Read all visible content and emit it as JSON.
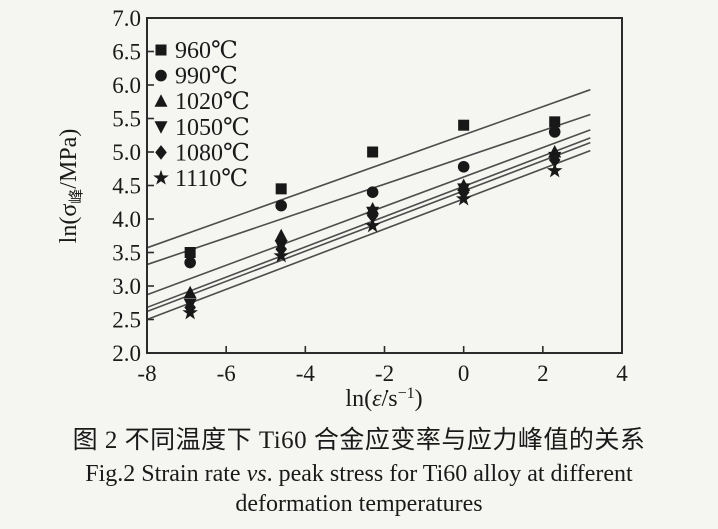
{
  "figure": {
    "caption_zh": "图 2  不同温度下 Ti60 合金应变率与应力峰值的关系",
    "caption_en_pre": "Fig.2  Strain rate ",
    "caption_en_italic": "vs",
    "caption_en_post": ". peak stress for Ti60 alloy at different",
    "caption_en_line2": "deformation temperatures"
  },
  "chart_data": {
    "type": "scatter",
    "title": "",
    "xlabel_parts": {
      "pre": "ln(",
      "var": "ε̇",
      "mid": "/s",
      "sup": "−1",
      "post": ")"
    },
    "ylabel_parts": {
      "pre": "ln(σ",
      "sub": "峰",
      "post": "/MPa)"
    },
    "xlim": [
      -8,
      4
    ],
    "ylim": [
      2.0,
      7.0
    ],
    "xticks": [
      -8,
      -6,
      -4,
      -2,
      0,
      2,
      4
    ],
    "xtick_labels": [
      "-8",
      "-6",
      "-4",
      "-2",
      "0",
      "2",
      "4"
    ],
    "yticks": [
      2.0,
      2.5,
      3.0,
      3.5,
      4.0,
      4.5,
      5.0,
      5.5,
      6.0,
      6.5,
      7.0
    ],
    "ytick_labels": [
      "2.0",
      "2.5",
      "3.0",
      "3.5",
      "4.0",
      "4.5",
      "5.0",
      "5.5",
      "6.0",
      "6.5",
      "7.0"
    ],
    "grid": false,
    "legend_position": "top-left",
    "x": [
      -6.91,
      -4.61,
      -2.3,
      0.0,
      2.3
    ],
    "series": [
      {
        "name": "960℃",
        "marker": "square",
        "values": [
          3.5,
          4.45,
          5.0,
          5.4,
          5.45
        ],
        "fit_line": {
          "x1": -8,
          "y1": 3.57,
          "x2": 3.2,
          "y2": 5.93
        }
      },
      {
        "name": "990℃",
        "marker": "circle",
        "values": [
          3.35,
          4.2,
          4.4,
          4.78,
          5.3
        ],
        "fit_line": {
          "x1": -8,
          "y1": 3.32,
          "x2": 3.2,
          "y2": 5.56
        }
      },
      {
        "name": "1020℃",
        "marker": "triangle-up",
        "values": [
          2.9,
          3.75,
          4.15,
          4.5,
          5.0
        ],
        "fit_line": {
          "x1": -8,
          "y1": 2.87,
          "x2": 3.2,
          "y2": 5.33
        }
      },
      {
        "name": "1050℃",
        "marker": "triangle-down",
        "values": [
          2.73,
          3.6,
          4.1,
          4.45,
          4.92
        ],
        "fit_line": {
          "x1": -8,
          "y1": 2.68,
          "x2": 3.2,
          "y2": 5.21
        }
      },
      {
        "name": "1080℃",
        "marker": "diamond",
        "values": [
          2.68,
          3.55,
          4.05,
          4.4,
          4.88
        ],
        "fit_line": {
          "x1": -8,
          "y1": 2.62,
          "x2": 3.2,
          "y2": 5.14
        }
      },
      {
        "name": "1110℃",
        "marker": "star",
        "values": [
          2.6,
          3.45,
          3.9,
          4.3,
          4.72
        ],
        "fit_line": {
          "x1": -8,
          "y1": 2.5,
          "x2": 3.2,
          "y2": 5.02
        }
      }
    ],
    "colors": {
      "background": "#f5f5f2",
      "marker": "#181818",
      "fit_line": "#4d4d4d",
      "axis": "#2b2b2b",
      "text": "#1a1a1a"
    }
  }
}
